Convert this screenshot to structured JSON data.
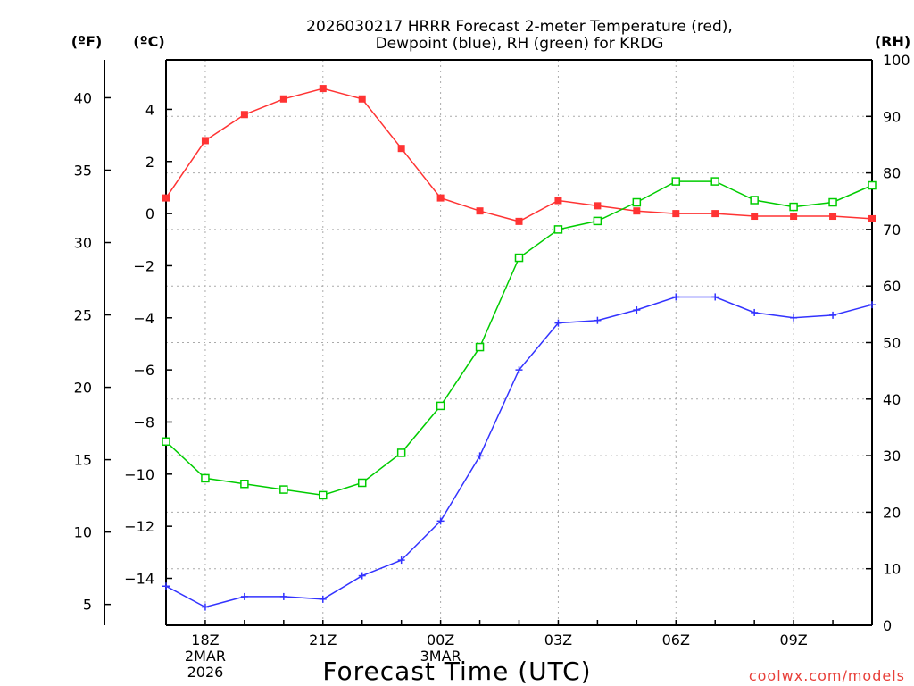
{
  "chart_data": {
    "type": "line",
    "title_line1": "2026030217 HRRR Forecast 2-meter Temperature (red),",
    "title_line2": "Dewpoint (blue), RH (green) for KRDG",
    "xlabel": "Forecast Time (UTC)",
    "left_unit_f": "(ºF)",
    "left_unit_c": "(ºC)",
    "right_unit": "(RH)",
    "watermark": "coolwx.com/models",
    "x_hours": [
      17,
      18,
      19,
      20,
      21,
      22,
      23,
      24,
      25,
      26,
      27,
      28,
      29,
      30,
      31,
      32,
      33,
      34,
      35
    ],
    "x_tick_labels": [
      {
        "hour": 18,
        "lines": [
          "18Z",
          "2MAR",
          "2026"
        ]
      },
      {
        "hour": 21,
        "lines": [
          "21Z"
        ]
      },
      {
        "hour": 24,
        "lines": [
          "00Z",
          "3MAR"
        ]
      },
      {
        "hour": 27,
        "lines": [
          "03Z"
        ]
      },
      {
        "hour": 30,
        "lines": [
          "06Z"
        ]
      },
      {
        "hour": 33,
        "lines": [
          "09Z"
        ]
      }
    ],
    "celsius_axis": {
      "ylim": [
        -15.8,
        5.9
      ],
      "ticks": [
        -14,
        -12,
        -10,
        -8,
        -6,
        -4,
        -2,
        0,
        2,
        4
      ]
    },
    "fahrenheit_ticks": [
      5,
      10,
      15,
      20,
      25,
      30,
      35,
      40
    ],
    "rh_axis": {
      "ylim": [
        0,
        100
      ],
      "ticks": [
        0,
        10,
        20,
        30,
        40,
        50,
        60,
        70,
        80,
        90,
        100
      ]
    },
    "series": [
      {
        "name": "Temperature",
        "unit": "C",
        "color": "#ff3333",
        "marker": "filled-square",
        "values": [
          0.6,
          2.8,
          3.8,
          4.4,
          4.8,
          4.4,
          2.5,
          0.6,
          0.1,
          -0.3,
          0.5,
          0.3,
          0.1,
          0.0,
          0.0,
          -0.1,
          -0.1,
          -0.1,
          -0.2
        ]
      },
      {
        "name": "Dewpoint",
        "unit": "C",
        "color": "#3333ff",
        "marker": "plus",
        "values": [
          -14.3,
          -15.1,
          -14.7,
          -14.7,
          -14.8,
          -13.9,
          -13.3,
          -11.8,
          -9.3,
          -6.0,
          -4.2,
          -4.1,
          -3.7,
          -3.2,
          -3.2,
          -3.8,
          -4.0,
          -3.9,
          -3.5
        ]
      },
      {
        "name": "RH",
        "unit": "%",
        "color": "#00cc00",
        "marker": "open-square",
        "values": [
          32.5,
          26.0,
          25.0,
          24.0,
          23.0,
          25.2,
          30.5,
          38.8,
          49.2,
          65.0,
          70.0,
          71.5,
          74.8,
          78.5,
          78.5,
          75.2,
          74.0,
          74.8,
          77.8
        ]
      }
    ]
  }
}
